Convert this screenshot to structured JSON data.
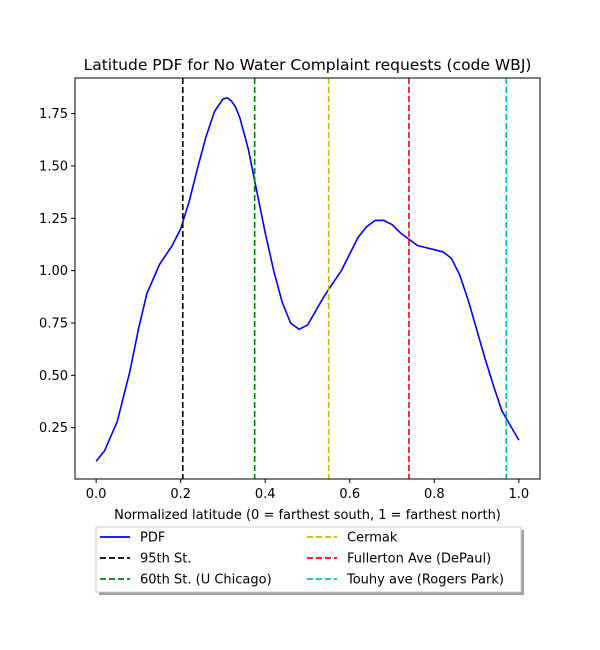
{
  "chart_data": {
    "type": "line",
    "title": "Latitude PDF for No Water Complaint  requests (code WBJ)",
    "xlabel": "Normalized latitude (0 = farthest south, 1 = farthest north)",
    "ylabel": "",
    "xlim": [
      -0.05,
      1.05
    ],
    "ylim": [
      0.005,
      1.92
    ],
    "x_ticks": [
      0.0,
      0.2,
      0.4,
      0.6,
      0.8,
      1.0
    ],
    "x_tick_labels": [
      "0.0",
      "0.2",
      "0.4",
      "0.6",
      "0.8",
      "1.0"
    ],
    "y_ticks": [
      0.25,
      0.5,
      0.75,
      1.0,
      1.25,
      1.5,
      1.75
    ],
    "y_tick_labels": [
      "0.25",
      "0.50",
      "0.75",
      "1.00",
      "1.25",
      "1.50",
      "1.75"
    ],
    "grid": false,
    "legend_placement": "below plot, two columns",
    "series": [
      {
        "name": "PDF",
        "color": "#0000ff",
        "style": "solid",
        "x": [
          0.0,
          0.02,
          0.05,
          0.08,
          0.1,
          0.12,
          0.15,
          0.18,
          0.2,
          0.22,
          0.24,
          0.26,
          0.28,
          0.3,
          0.31,
          0.32,
          0.33,
          0.34,
          0.36,
          0.38,
          0.4,
          0.42,
          0.44,
          0.46,
          0.48,
          0.5,
          0.52,
          0.54,
          0.56,
          0.58,
          0.6,
          0.62,
          0.64,
          0.66,
          0.68,
          0.7,
          0.72,
          0.74,
          0.76,
          0.78,
          0.8,
          0.82,
          0.84,
          0.86,
          0.88,
          0.9,
          0.92,
          0.94,
          0.96,
          0.98,
          1.0
        ],
        "values": [
          0.09,
          0.14,
          0.28,
          0.52,
          0.72,
          0.89,
          1.03,
          1.12,
          1.2,
          1.33,
          1.49,
          1.64,
          1.76,
          1.82,
          1.825,
          1.81,
          1.78,
          1.73,
          1.58,
          1.38,
          1.18,
          1.0,
          0.85,
          0.75,
          0.72,
          0.74,
          0.81,
          0.88,
          0.94,
          1.0,
          1.08,
          1.16,
          1.21,
          1.24,
          1.24,
          1.22,
          1.18,
          1.15,
          1.12,
          1.11,
          1.1,
          1.09,
          1.06,
          0.98,
          0.86,
          0.72,
          0.58,
          0.45,
          0.33,
          0.26,
          0.19
        ]
      }
    ],
    "vlines": [
      {
        "name": "95th St.",
        "x": 0.205,
        "color": "#000000",
        "style": "dashed"
      },
      {
        "name": "60th St. (U Chicago)",
        "x": 0.375,
        "color": "#008000",
        "style": "dashed"
      },
      {
        "name": "Cermak",
        "x": 0.55,
        "color": "#bfbf00",
        "style": "dashed"
      },
      {
        "name": "Fullerton Ave (DePaul)",
        "x": 0.74,
        "color": "#ff0000",
        "style": "dashed"
      },
      {
        "name": "Touhy ave (Rogers Park)",
        "x": 0.97,
        "color": "#00bfbf",
        "style": "dashed"
      }
    ]
  }
}
